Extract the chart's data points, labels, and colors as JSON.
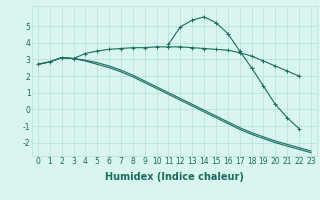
{
  "x": [
    0,
    1,
    2,
    3,
    4,
    5,
    6,
    7,
    8,
    9,
    10,
    11,
    12,
    13,
    14,
    15,
    16,
    17,
    18,
    19,
    20,
    21,
    22,
    23
  ],
  "line1_x": [
    0,
    1,
    2,
    3,
    4,
    5,
    6,
    7,
    8,
    9,
    10,
    11,
    12,
    13,
    14,
    15,
    16,
    17,
    18,
    19,
    20,
    21,
    22
  ],
  "line1_y": [
    2.7,
    2.85,
    3.1,
    3.05,
    3.35,
    3.5,
    3.6,
    3.65,
    3.7,
    3.7,
    3.75,
    3.75,
    3.75,
    3.7,
    3.65,
    3.6,
    3.55,
    3.4,
    3.2,
    2.9,
    2.6,
    2.3,
    2.0
  ],
  "line2_x": [
    11,
    12,
    13,
    14,
    15,
    16,
    17,
    18,
    19,
    20,
    21,
    22
  ],
  "line2_y": [
    3.9,
    4.95,
    5.35,
    5.55,
    5.2,
    4.55,
    3.5,
    2.5,
    1.4,
    0.3,
    -0.5,
    -1.15
  ],
  "line3_x": [
    0,
    1,
    2,
    3,
    4,
    5,
    6,
    7,
    8,
    9,
    10,
    11,
    12,
    13,
    14,
    15,
    16,
    17,
    18,
    19,
    20,
    21,
    22,
    23
  ],
  "line3_y": [
    2.7,
    2.85,
    3.1,
    3.05,
    2.95,
    2.8,
    2.6,
    2.35,
    2.05,
    1.7,
    1.35,
    1.0,
    0.65,
    0.3,
    -0.05,
    -0.4,
    -0.75,
    -1.1,
    -1.4,
    -1.65,
    -1.9,
    -2.1,
    -2.3,
    -2.5
  ],
  "line4_x": [
    0,
    1,
    2,
    3,
    4,
    5,
    6,
    7,
    8,
    9,
    10,
    11,
    12,
    13,
    14,
    15,
    16,
    17,
    18,
    19,
    20,
    21,
    22,
    23
  ],
  "line4_y": [
    2.7,
    2.85,
    3.1,
    3.05,
    2.9,
    2.7,
    2.5,
    2.25,
    1.95,
    1.6,
    1.25,
    0.9,
    0.55,
    0.2,
    -0.15,
    -0.5,
    -0.85,
    -1.2,
    -1.5,
    -1.75,
    -2.0,
    -2.2,
    -2.4,
    -2.6
  ],
  "line_color": "#1a6b5e",
  "bg_color": "#d8f5f0",
  "grid_color": "#b8deda",
  "xlabel": "Humidex (Indice chaleur)",
  "xlim": [
    -0.5,
    23.5
  ],
  "ylim": [
    -2.8,
    6.2
  ],
  "yticks": [
    -2,
    -1,
    0,
    1,
    2,
    3,
    4,
    5
  ],
  "xticks": [
    0,
    1,
    2,
    3,
    4,
    5,
    6,
    7,
    8,
    9,
    10,
    11,
    12,
    13,
    14,
    15,
    16,
    17,
    18,
    19,
    20,
    21,
    22,
    23
  ],
  "fontsize_tick": 5.5,
  "fontsize_label": 7.0
}
